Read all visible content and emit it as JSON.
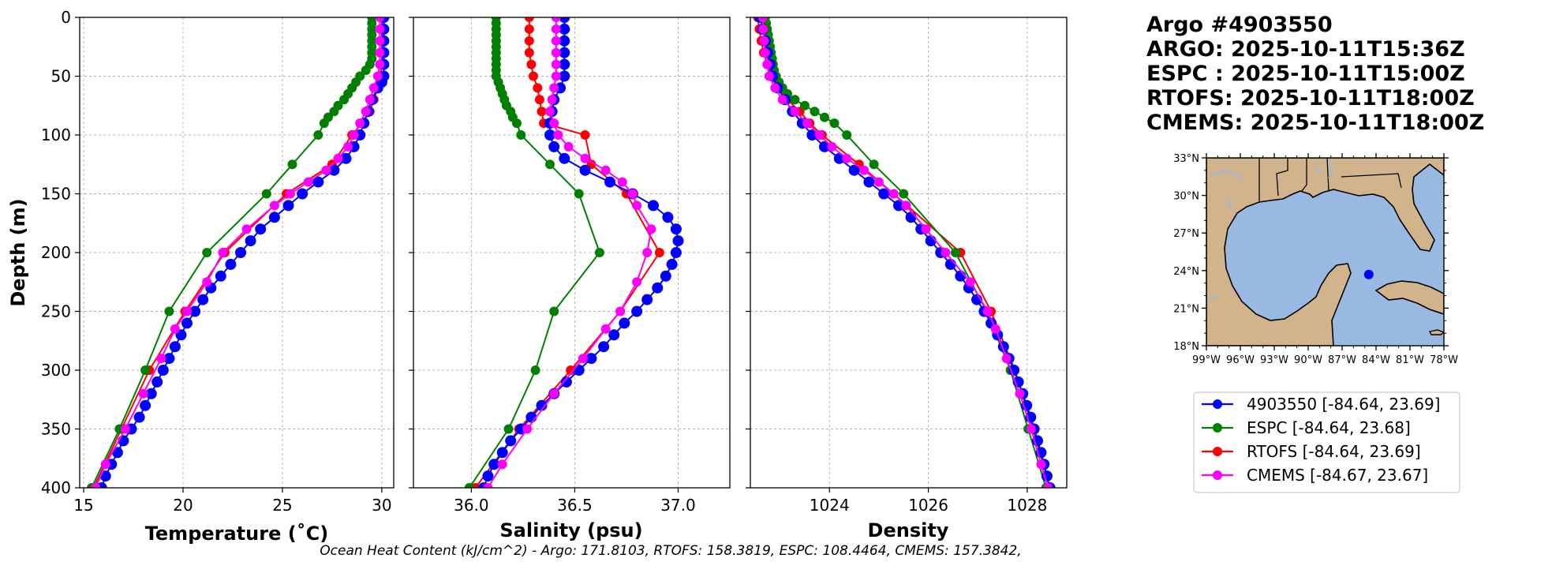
{
  "info": {
    "lines": [
      "Argo #4903550",
      "ARGO: 2025-10-11T15:36Z",
      "ESPC : 2025-10-11T15:00Z",
      "RTOFS: 2025-10-11T18:00Z",
      "CMEMS: 2025-10-11T18:00Z"
    ]
  },
  "footer": "Ocean Heat Content (kJ/cm^2) - Argo: 171.8103,  RTOFS: 158.3819,  ESPC: 108.4464,  CMEMS: 157.3842,",
  "colors": {
    "argo": "#0000ff",
    "espc": "#008000",
    "rtofs": "#ff0000",
    "cmems": "#ff00ff",
    "ocean": "#99b8e2",
    "land": "#d2b48c",
    "grid": "#b0b0b0"
  },
  "legend": [
    {
      "label": "4903550 [-84.64, 23.69]",
      "color": "#0000ff"
    },
    {
      "label": "ESPC [-84.64, 23.68]",
      "color": "#008000"
    },
    {
      "label": "RTOFS [-84.64, 23.69]",
      "color": "#ff0000"
    },
    {
      "label": "CMEMS [-84.67, 23.67]",
      "color": "#ff00ff"
    }
  ],
  "map": {
    "lat_ticks": [
      "33°N",
      "30°N",
      "27°N",
      "24°N",
      "21°N",
      "18°N"
    ],
    "lon_ticks": [
      "99°W",
      "96°W",
      "93°W",
      "90°W",
      "87°W",
      "84°W",
      "81°W",
      "78°W"
    ],
    "lon_range": [
      -99,
      -78
    ],
    "lat_range": [
      18,
      33
    ],
    "float_position": {
      "lon": -84.64,
      "lat": 23.69
    }
  },
  "chart_data": [
    {
      "type": "line",
      "xlabel": "Temperature (˚C)",
      "ylabel": "Depth (m)",
      "xlim": [
        14.8,
        30.6
      ],
      "ylim": [
        400,
        0
      ],
      "xticks": [
        15,
        20,
        25,
        30
      ],
      "yticks": [
        0,
        50,
        100,
        150,
        200,
        250,
        300,
        350,
        400
      ],
      "grid": true,
      "series": [
        {
          "name": "4903550",
          "color": "#0000ff",
          "depth": [
            0,
            10,
            20,
            30,
            40,
            50,
            55,
            60,
            70,
            80,
            90,
            100,
            110,
            120,
            130,
            140,
            150,
            160,
            170,
            180,
            190,
            200,
            210,
            220,
            230,
            240,
            250,
            260,
            270,
            280,
            290,
            300,
            310,
            320,
            330,
            340,
            350,
            360,
            370,
            380,
            390,
            400
          ],
          "values": [
            30.1,
            30.1,
            30.1,
            30.1,
            30.1,
            30.1,
            30.0,
            29.8,
            29.5,
            29.3,
            29.1,
            28.9,
            28.6,
            28.2,
            27.6,
            26.8,
            26.0,
            25.3,
            24.6,
            23.9,
            23.4,
            22.9,
            22.4,
            21.9,
            21.4,
            21.0,
            20.6,
            20.2,
            19.9,
            19.6,
            19.3,
            19.0,
            18.7,
            18.4,
            18.1,
            17.8,
            17.4,
            17.0,
            16.7,
            16.4,
            16.1,
            15.9
          ]
        },
        {
          "name": "ESPC",
          "color": "#008000",
          "depth": [
            0,
            5,
            10,
            15,
            20,
            25,
            30,
            35,
            40,
            45,
            50,
            55,
            60,
            65,
            70,
            75,
            80,
            85,
            90,
            100,
            125,
            150,
            200,
            250,
            300,
            350,
            400
          ],
          "values": [
            29.5,
            29.5,
            29.5,
            29.5,
            29.5,
            29.5,
            29.5,
            29.5,
            29.4,
            29.2,
            28.9,
            28.7,
            28.5,
            28.3,
            28.1,
            27.8,
            27.6,
            27.3,
            27.1,
            26.8,
            25.5,
            24.2,
            21.2,
            19.3,
            18.1,
            16.8,
            15.4
          ]
        },
        {
          "name": "RTOFS",
          "color": "#ff0000",
          "depth": [
            0,
            10,
            20,
            30,
            40,
            50,
            60,
            70,
            80,
            90,
            100,
            125,
            150,
            200,
            250,
            300,
            350,
            400
          ],
          "values": [
            30.0,
            30.0,
            30.0,
            30.0,
            30.0,
            29.9,
            29.8,
            29.6,
            29.4,
            29.0,
            28.5,
            27.5,
            25.2,
            22.1,
            20.1,
            18.3,
            16.9,
            15.5
          ]
        },
        {
          "name": "CMEMS",
          "color": "#ff00ff",
          "depth": [
            0,
            10,
            20,
            30,
            40,
            50,
            60,
            70,
            80,
            90,
            100,
            110,
            120,
            130,
            140,
            150,
            160,
            180,
            200,
            225,
            250,
            265,
            290,
            320,
            350,
            380,
            400
          ],
          "values": [
            29.9,
            29.9,
            29.9,
            29.9,
            29.9,
            29.8,
            29.6,
            29.4,
            29.2,
            28.9,
            28.6,
            28.3,
            27.8,
            27.2,
            26.3,
            25.4,
            24.6,
            23.2,
            22.0,
            21.2,
            20.2,
            19.6,
            18.9,
            18.0,
            17.1,
            16.1,
            15.6
          ]
        }
      ]
    },
    {
      "type": "line",
      "xlabel": "Salinity (psu)",
      "ylabel": "",
      "xlim": [
        35.72,
        37.25
      ],
      "ylim": [
        400,
        0
      ],
      "xticks": [
        36.0,
        36.5,
        37.0
      ],
      "yticks": [
        0,
        50,
        100,
        150,
        200,
        250,
        300,
        350,
        400
      ],
      "grid": true,
      "series": [
        {
          "name": "4903550",
          "color": "#0000ff",
          "depth": [
            0,
            10,
            20,
            30,
            40,
            50,
            60,
            70,
            80,
            90,
            100,
            110,
            120,
            130,
            140,
            150,
            160,
            170,
            180,
            190,
            200,
            210,
            220,
            230,
            240,
            250,
            260,
            270,
            280,
            290,
            300,
            310,
            320,
            330,
            340,
            350,
            360,
            370,
            380,
            390,
            400
          ],
          "values": [
            36.45,
            36.45,
            36.45,
            36.45,
            36.45,
            36.45,
            36.43,
            36.4,
            36.39,
            36.38,
            36.38,
            36.4,
            36.45,
            36.55,
            36.67,
            36.78,
            36.88,
            36.95,
            36.99,
            37.0,
            36.99,
            36.97,
            36.94,
            36.9,
            36.85,
            36.8,
            36.74,
            36.69,
            36.64,
            36.58,
            36.52,
            36.46,
            36.4,
            36.34,
            36.29,
            36.24,
            36.19,
            36.15,
            36.11,
            36.08,
            36.06
          ]
        },
        {
          "name": "ESPC",
          "color": "#008000",
          "depth": [
            0,
            5,
            10,
            15,
            20,
            25,
            30,
            35,
            40,
            45,
            50,
            55,
            60,
            65,
            70,
            75,
            80,
            85,
            90,
            100,
            125,
            150,
            200,
            250,
            300,
            350,
            400
          ],
          "values": [
            36.12,
            36.12,
            36.12,
            36.12,
            36.12,
            36.12,
            36.12,
            36.12,
            36.12,
            36.12,
            36.12,
            36.13,
            36.14,
            36.15,
            36.16,
            36.17,
            36.19,
            36.2,
            36.22,
            36.24,
            36.38,
            36.52,
            36.62,
            36.4,
            36.31,
            36.18,
            35.99
          ]
        },
        {
          "name": "RTOFS",
          "color": "#ff0000",
          "depth": [
            0,
            10,
            20,
            30,
            40,
            50,
            60,
            70,
            80,
            90,
            100,
            125,
            150,
            200,
            250,
            300,
            350,
            400
          ],
          "values": [
            36.28,
            36.28,
            36.28,
            36.28,
            36.29,
            36.3,
            36.32,
            36.33,
            36.34,
            36.35,
            36.55,
            36.58,
            36.75,
            36.91,
            36.72,
            36.48,
            36.23,
            36.02
          ]
        },
        {
          "name": "CMEMS",
          "color": "#ff00ff",
          "depth": [
            0,
            10,
            20,
            30,
            40,
            50,
            60,
            70,
            80,
            90,
            100,
            110,
            120,
            130,
            140,
            150,
            160,
            180,
            200,
            225,
            250,
            265,
            290,
            320,
            350,
            380,
            400
          ],
          "values": [
            36.41,
            36.41,
            36.41,
            36.41,
            36.41,
            36.41,
            36.4,
            36.39,
            36.38,
            36.4,
            36.42,
            36.47,
            36.55,
            36.65,
            36.73,
            36.78,
            36.8,
            36.87,
            36.85,
            36.8,
            36.72,
            36.65,
            36.54,
            36.4,
            36.27,
            36.15,
            36.08
          ]
        }
      ]
    },
    {
      "type": "line",
      "xlabel": "Density",
      "ylabel": "",
      "xlim": [
        1022.4,
        1028.8
      ],
      "ylim": [
        400,
        0
      ],
      "xticks": [
        1024,
        1026,
        1028
      ],
      "yticks": [
        0,
        50,
        100,
        150,
        200,
        250,
        300,
        350,
        400
      ],
      "grid": true,
      "series": [
        {
          "name": "4903550",
          "color": "#0000ff",
          "depth": [
            0,
            10,
            20,
            30,
            40,
            50,
            60,
            70,
            80,
            90,
            100,
            110,
            120,
            130,
            140,
            150,
            160,
            170,
            180,
            190,
            200,
            210,
            220,
            230,
            240,
            250,
            260,
            270,
            280,
            290,
            300,
            310,
            320,
            330,
            340,
            350,
            360,
            370,
            380,
            390,
            400
          ],
          "values": [
            1022.6,
            1022.65,
            1022.7,
            1022.75,
            1022.8,
            1022.85,
            1022.95,
            1023.1,
            1023.25,
            1023.45,
            1023.65,
            1023.9,
            1024.2,
            1024.5,
            1024.8,
            1025.1,
            1025.4,
            1025.65,
            1025.85,
            1026.05,
            1026.25,
            1026.45,
            1026.65,
            1026.82,
            1026.98,
            1027.13,
            1027.27,
            1027.4,
            1027.52,
            1027.63,
            1027.73,
            1027.82,
            1027.91,
            1027.99,
            1028.07,
            1028.14,
            1028.21,
            1028.28,
            1028.34,
            1028.4,
            1028.46
          ]
        },
        {
          "name": "ESPC",
          "color": "#008000",
          "depth": [
            0,
            5,
            10,
            15,
            20,
            25,
            30,
            35,
            40,
            45,
            50,
            55,
            60,
            65,
            70,
            75,
            80,
            85,
            90,
            100,
            125,
            150,
            200,
            250,
            300,
            350,
            400
          ],
          "values": [
            1022.7,
            1022.72,
            1022.74,
            1022.76,
            1022.78,
            1022.8,
            1022.82,
            1022.84,
            1022.86,
            1022.88,
            1022.92,
            1022.98,
            1023.05,
            1023.15,
            1023.3,
            1023.5,
            1023.7,
            1023.9,
            1024.1,
            1024.35,
            1024.9,
            1025.5,
            1026.55,
            1027.18,
            1027.66,
            1028.02,
            1028.38
          ]
        },
        {
          "name": "RTOFS",
          "color": "#ff0000",
          "depth": [
            0,
            10,
            20,
            30,
            40,
            50,
            60,
            70,
            80,
            90,
            100,
            125,
            150,
            200,
            250,
            300,
            350,
            400
          ],
          "values": [
            1022.55,
            1022.58,
            1022.62,
            1022.67,
            1022.74,
            1022.82,
            1022.95,
            1023.15,
            1023.4,
            1023.6,
            1023.85,
            1024.6,
            1025.3,
            1026.65,
            1027.27,
            1027.75,
            1028.12,
            1028.46
          ]
        },
        {
          "name": "CMEMS",
          "color": "#ff00ff",
          "depth": [
            0,
            10,
            20,
            30,
            40,
            50,
            60,
            70,
            80,
            90,
            100,
            110,
            120,
            130,
            140,
            150,
            160,
            180,
            200,
            225,
            250,
            265,
            290,
            320,
            350,
            380,
            400
          ],
          "values": [
            1022.65,
            1022.66,
            1022.68,
            1022.7,
            1022.74,
            1022.78,
            1022.9,
            1023.05,
            1023.3,
            1023.55,
            1023.8,
            1024.05,
            1024.35,
            1024.7,
            1025.0,
            1025.3,
            1025.55,
            1025.95,
            1026.35,
            1026.85,
            1027.2,
            1027.36,
            1027.58,
            1027.85,
            1028.08,
            1028.28,
            1028.42
          ]
        }
      ]
    }
  ]
}
